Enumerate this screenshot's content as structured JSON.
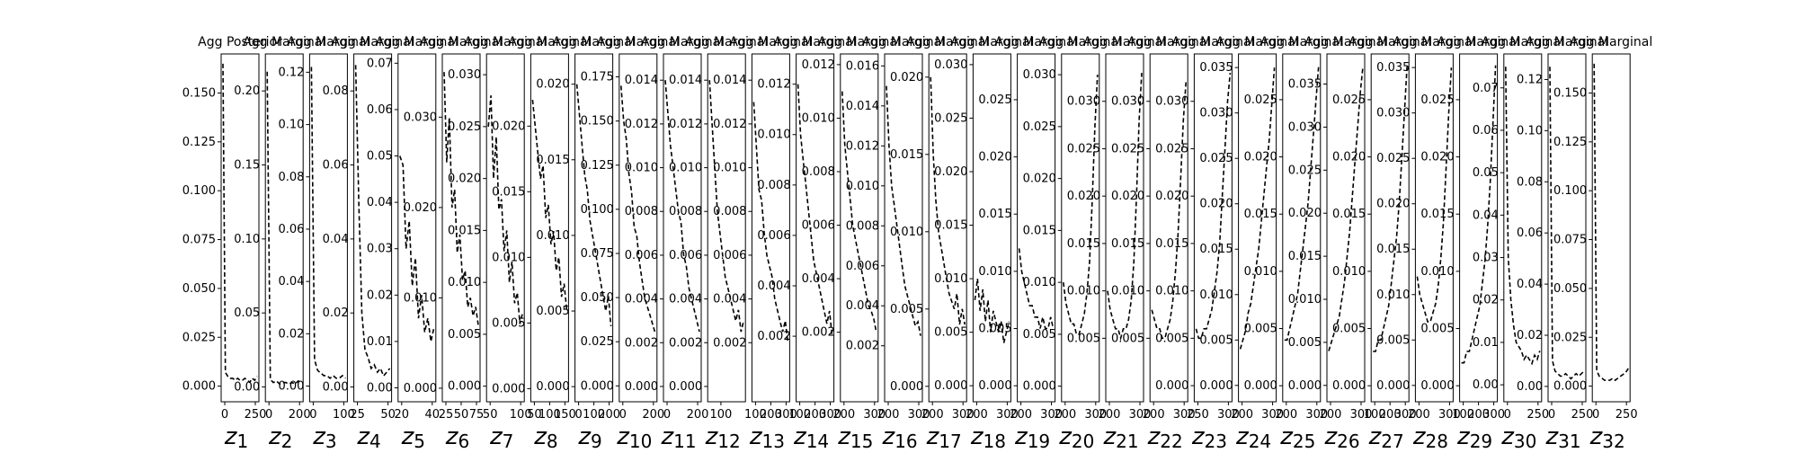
{
  "chart_data": [
    {
      "type": "line",
      "title": "Agg Posterior",
      "xlabel": "z_1",
      "subscript": "1",
      "ylim": [
        -0.008,
        0.17
      ],
      "yticks": [
        "0.000",
        "0.025",
        "0.050",
        "0.075",
        "0.100",
        "0.125",
        "0.150"
      ],
      "xticks": [
        "0",
        "250"
      ],
      "values": [
        0.165,
        0.007,
        0.005,
        0.004,
        0.004,
        0.003,
        0.004,
        0.003,
        0.003,
        0.004,
        0.003,
        0.002,
        0.004,
        0.003,
        0.005
      ]
    },
    {
      "type": "line",
      "title": "Agg Marginal",
      "xlabel": "z_2",
      "subscript": "2",
      "ylim": [
        -0.01,
        0.225
      ],
      "yticks": [
        "0.00",
        "0.05",
        "0.10",
        "0.15",
        "0.20"
      ],
      "xticks": [
        "0",
        "200"
      ],
      "values": [
        0.213,
        0.005,
        0.003,
        0.004,
        0.002,
        0.003,
        0.003,
        0.002,
        0.003,
        0.002,
        0.004,
        0.003
      ]
    },
    {
      "type": "line",
      "title": "Agg Marginal",
      "xlabel": "z_3",
      "subscript": "3",
      "ylim": [
        -0.006,
        0.127
      ],
      "yticks": [
        "0.00",
        "0.02",
        "0.04",
        "0.06",
        "0.08",
        "0.10",
        "0.12"
      ],
      "xticks": [
        "0",
        "100"
      ],
      "values": [
        0.122,
        0.01,
        0.006,
        0.005,
        0.004,
        0.004,
        0.003,
        0.004,
        0.003,
        0.003,
        0.004,
        0.003
      ]
    },
    {
      "type": "line",
      "title": "Agg Marginal",
      "xlabel": "z_4",
      "subscript": "4",
      "ylim": [
        -0.004,
        0.09
      ],
      "yticks": [
        "0.00",
        "0.02",
        "0.04",
        "0.06",
        "0.08"
      ],
      "xticks": [
        "25",
        "50"
      ],
      "values": [
        0.087,
        0.05,
        0.02,
        0.01,
        0.008,
        0.005,
        0.006,
        0.004,
        0.005,
        0.003,
        0.004,
        0.005
      ]
    },
    {
      "type": "line",
      "title": "Agg Marginal",
      "xlabel": "z_5",
      "subscript": "5",
      "ylim": [
        -0.003,
        0.072
      ],
      "yticks": [
        "0.00",
        "0.01",
        "0.02",
        "0.03",
        "0.04",
        "0.05",
        "0.06",
        "0.07"
      ],
      "xticks": [
        "20",
        "40"
      ],
      "values": [
        0.05,
        0.048,
        0.03,
        0.036,
        0.022,
        0.028,
        0.015,
        0.02,
        0.012,
        0.015,
        0.01,
        0.013
      ]
    },
    {
      "type": "line",
      "title": "Agg Marginal",
      "xlabel": "z_6",
      "subscript": "6",
      "ylim": [
        -0.0015,
        0.037
      ],
      "yticks": [
        "0.000",
        "0.010",
        "0.020",
        "0.030"
      ],
      "xticks": [
        "25",
        "50",
        "75"
      ],
      "values": [
        0.035,
        0.025,
        0.03,
        0.02,
        0.022,
        0.015,
        0.017,
        0.012,
        0.013,
        0.009,
        0.01,
        0.008,
        0.009,
        0.007
      ]
    },
    {
      "type": "line",
      "title": "Agg Marginal",
      "xlabel": "z_7",
      "subscript": "7",
      "ylim": [
        -0.0015,
        0.032
      ],
      "yticks": [
        "0.000",
        "0.005",
        "0.010",
        "0.015",
        "0.020",
        "0.025",
        "0.030"
      ],
      "xticks": [
        "50",
        "100"
      ],
      "values": [
        0.025,
        0.028,
        0.02,
        0.024,
        0.017,
        0.018,
        0.013,
        0.015,
        0.01,
        0.012,
        0.008,
        0.009,
        0.006,
        0.007
      ]
    },
    {
      "type": "line",
      "title": "Agg Marginal",
      "xlabel": "z_8",
      "subscript": "8",
      "ylim": [
        -0.001,
        0.0255
      ],
      "yticks": [
        "0.000",
        "0.005",
        "0.010",
        "0.015",
        "0.020"
      ],
      "xticks": [
        "50",
        "100",
        "150"
      ],
      "values": [
        0.022,
        0.02,
        0.018,
        0.016,
        0.017,
        0.013,
        0.014,
        0.011,
        0.012,
        0.009,
        0.01,
        0.007,
        0.008,
        0.006
      ]
    },
    {
      "type": "line",
      "title": "Agg Marginal",
      "xlabel": "z_9",
      "subscript": "9",
      "ylim": [
        -0.001,
        0.022
      ],
      "yticks": [
        "0.000",
        "0.005",
        "0.010",
        "0.015",
        "0.020"
      ],
      "xticks": [
        "0",
        "100",
        "200"
      ],
      "values": [
        0.02,
        0.018,
        0.016,
        0.014,
        0.013,
        0.011,
        0.01,
        0.009,
        0.008,
        0.007,
        0.006,
        0.005,
        0.006,
        0.004
      ]
    },
    {
      "type": "line",
      "title": "Agg Marginal",
      "xlabel": "z_10",
      "subscript": "10",
      "ylim": [
        -0.009,
        0.188
      ],
      "yticks": [
        "0.000",
        "0.025",
        "0.050",
        "0.075",
        "0.100",
        "0.125",
        "0.150",
        "0.175"
      ],
      "xticks": [
        "0",
        "200"
      ],
      "values": [
        0.17,
        0.15,
        0.14,
        0.12,
        0.11,
        0.09,
        0.085,
        0.07,
        0.06,
        0.05,
        0.045,
        0.04,
        0.035,
        0.03
      ]
    },
    {
      "type": "line",
      "title": "Agg Marginal",
      "xlabel": "z_11",
      "subscript": "11",
      "ylim": [
        -0.0007,
        0.0152
      ],
      "yticks": [
        "0.000",
        "0.002",
        "0.004",
        "0.006",
        "0.008",
        "0.010",
        "0.012",
        "0.014"
      ],
      "xticks": [
        "0",
        "200"
      ],
      "values": [
        0.014,
        0.0125,
        0.011,
        0.01,
        0.009,
        0.008,
        0.0075,
        0.006,
        0.0055,
        0.0045,
        0.004,
        0.0035,
        0.003,
        0.0025
      ]
    },
    {
      "type": "line",
      "title": "Agg Marginal",
      "xlabel": "z_12",
      "subscript": "12",
      "ylim": [
        -0.0007,
        0.0152
      ],
      "yticks": [
        "0.000",
        "0.002",
        "0.004",
        "0.006",
        "0.008",
        "0.010",
        "0.012",
        "0.014"
      ],
      "xticks": [
        "100"
      ],
      "values": [
        0.014,
        0.012,
        0.01,
        0.008,
        0.007,
        0.006,
        0.005,
        0.0045,
        0.004,
        0.0035,
        0.003,
        0.0035,
        0.0025,
        0.003
      ]
    },
    {
      "type": "line",
      "title": "Agg Marginal",
      "xlabel": "z_13",
      "subscript": "13",
      "ylim": [
        -0.0007,
        0.0152
      ],
      "yticks": [
        "0.002",
        "0.004",
        "0.006",
        "0.008",
        "0.010",
        "0.012",
        "0.014"
      ],
      "xticks": [
        "100",
        "200",
        "300"
      ],
      "values": [
        0.013,
        0.011,
        0.009,
        0.0085,
        0.007,
        0.006,
        0.0055,
        0.005,
        0.004,
        0.0035,
        0.003,
        0.0025,
        0.003,
        0.002
      ]
    },
    {
      "type": "line",
      "title": "Agg Marginal",
      "xlabel": "z_14",
      "subscript": "14",
      "ylim": [
        -0.0006,
        0.0132
      ],
      "yticks": [
        "0.002",
        "0.004",
        "0.006",
        "0.008",
        "0.010",
        "0.012"
      ],
      "xticks": [
        "100",
        "200",
        "300"
      ],
      "values": [
        0.012,
        0.01,
        0.009,
        0.008,
        0.007,
        0.006,
        0.005,
        0.0045,
        0.004,
        0.0035,
        0.003,
        0.0025,
        0.003,
        0.002
      ]
    },
    {
      "type": "line",
      "title": "Agg Marginal",
      "xlabel": "z_15",
      "subscript": "15",
      "ylim": [
        -0.0006,
        0.0124
      ],
      "yticks": [
        "0.002",
        "0.004",
        "0.006",
        "0.008",
        "0.010",
        "0.012"
      ],
      "xticks": [
        "200",
        "300"
      ],
      "values": [
        0.011,
        0.009,
        0.008,
        0.007,
        0.006,
        0.0055,
        0.005,
        0.0045,
        0.004,
        0.0035,
        0.003,
        0.0028,
        0.0025,
        0.002
      ]
    },
    {
      "type": "line",
      "title": "Agg Marginal",
      "xlabel": "z_16",
      "subscript": "16",
      "ylim": [
        -0.0008,
        0.0166
      ],
      "yticks": [
        "0.002",
        "0.004",
        "0.006",
        "0.008",
        "0.010",
        "0.012",
        "0.014",
        "0.016"
      ],
      "xticks": [
        "200",
        "300"
      ],
      "values": [
        0.015,
        0.012,
        0.01,
        0.009,
        0.008,
        0.007,
        0.006,
        0.005,
        0.0045,
        0.004,
        0.0035,
        0.003,
        0.0032,
        0.0025
      ]
    },
    {
      "type": "line",
      "title": "Agg Marginal",
      "xlabel": "z_17",
      "subscript": "17",
      "ylim": [
        -0.001,
        0.0215
      ],
      "yticks": [
        "0.000",
        "0.005",
        "0.010",
        "0.015",
        "0.020"
      ],
      "xticks": [
        "200",
        "300"
      ],
      "values": [
        0.02,
        0.015,
        0.012,
        0.01,
        0.009,
        0.008,
        0.007,
        0.006,
        0.0055,
        0.005,
        0.006,
        0.004,
        0.005,
        0.004
      ]
    },
    {
      "type": "line",
      "title": "Agg Marginal",
      "xlabel": "z_18",
      "subscript": "18",
      "ylim": [
        -0.0015,
        0.031
      ],
      "yticks": [
        "0.000",
        "0.005",
        "0.010",
        "0.015",
        "0.020",
        "0.025",
        "0.030"
      ],
      "xticks": [
        "200",
        "300"
      ],
      "values": [
        0.008,
        0.01,
        0.007,
        0.009,
        0.006,
        0.008,
        0.005,
        0.007,
        0.006,
        0.005,
        0.006,
        0.004,
        0.005,
        0.006
      ]
    },
    {
      "type": "line",
      "title": "Agg Marginal",
      "xlabel": "z_19",
      "subscript": "19",
      "ylim": [
        -0.0014,
        0.029
      ],
      "yticks": [
        "0.000",
        "0.005",
        "0.010",
        "0.015",
        "0.020",
        "0.025"
      ],
      "xticks": [
        "200",
        "300"
      ],
      "values": [
        0.012,
        0.01,
        0.009,
        0.008,
        0.007,
        0.007,
        0.006,
        0.006,
        0.005,
        0.006,
        0.005,
        0.005,
        0.006,
        0.005
      ]
    },
    {
      "type": "line",
      "title": "Agg Marginal",
      "xlabel": "z_20",
      "subscript": "20",
      "ylim": [
        -0.0015,
        0.032
      ],
      "yticks": [
        "0.000",
        "0.005",
        "0.010",
        "0.015",
        "0.020",
        "0.025",
        "0.030"
      ],
      "xticks": [
        "200",
        "300"
      ],
      "values": [
        0.01,
        0.008,
        0.007,
        0.006,
        0.006,
        0.005,
        0.005,
        0.006,
        0.007,
        0.009,
        0.012,
        0.018,
        0.025,
        0.03
      ]
    },
    {
      "type": "line",
      "title": "Agg Marginal",
      "xlabel": "z_21",
      "subscript": "21",
      "ylim": [
        -0.0017,
        0.035
      ],
      "yticks": [
        "0.005",
        "0.010",
        "0.015",
        "0.020",
        "0.025",
        "0.030"
      ],
      "xticks": [
        "200",
        "300"
      ],
      "values": [
        0.01,
        0.008,
        0.007,
        0.006,
        0.006,
        0.005,
        0.006,
        0.006,
        0.007,
        0.009,
        0.013,
        0.02,
        0.028,
        0.033
      ]
    },
    {
      "type": "line",
      "title": "Agg Marginal",
      "xlabel": "z_22",
      "subscript": "22",
      "ylim": [
        -0.0017,
        0.035
      ],
      "yticks": [
        "0.005",
        "0.010",
        "0.015",
        "0.020",
        "0.025",
        "0.030"
      ],
      "xticks": [
        "200",
        "300"
      ],
      "values": [
        0.008,
        0.007,
        0.006,
        0.006,
        0.005,
        0.005,
        0.006,
        0.007,
        0.009,
        0.012,
        0.016,
        0.022,
        0.028,
        0.032
      ]
    },
    {
      "type": "line",
      "title": "Agg Marginal",
      "xlabel": "z_23",
      "subscript": "23",
      "ylim": [
        -0.0017,
        0.035
      ],
      "yticks": [
        "0.000",
        "0.005",
        "0.010",
        "0.015",
        "0.020",
        "0.025",
        "0.030"
      ],
      "xticks": [
        "250",
        "300"
      ],
      "values": [
        0.006,
        0.005,
        0.005,
        0.006,
        0.006,
        0.007,
        0.008,
        0.01,
        0.012,
        0.015,
        0.02,
        0.025,
        0.03,
        0.033
      ]
    },
    {
      "type": "line",
      "title": "Agg Marginal",
      "xlabel": "z_24",
      "subscript": "24",
      "ylim": [
        -0.0018,
        0.0365
      ],
      "yticks": [
        "0.000",
        "0.005",
        "0.010",
        "0.015",
        "0.020",
        "0.025",
        "0.030",
        "0.035"
      ],
      "xticks": [
        "200",
        "300"
      ],
      "values": [
        0.004,
        0.005,
        0.006,
        0.008,
        0.009,
        0.011,
        0.013,
        0.015,
        0.018,
        0.021,
        0.024,
        0.027,
        0.031,
        0.035
      ]
    },
    {
      "type": "line",
      "title": "Agg Marginal",
      "xlabel": "z_25",
      "subscript": "25",
      "ylim": [
        -0.0014,
        0.029
      ],
      "yticks": [
        "0.000",
        "0.005",
        "0.010",
        "0.015",
        "0.020",
        "0.025"
      ],
      "xticks": [
        "200",
        "300"
      ],
      "values": [
        0.004,
        0.004,
        0.005,
        0.006,
        0.007,
        0.008,
        0.01,
        0.012,
        0.014,
        0.016,
        0.019,
        0.022,
        0.025,
        0.028
      ]
    },
    {
      "type": "line",
      "title": "Agg Marginal",
      "xlabel": "z_26",
      "subscript": "26",
      "ylim": [
        -0.0019,
        0.0385
      ],
      "yticks": [
        "0.000",
        "0.005",
        "0.010",
        "0.015",
        "0.020",
        "0.025",
        "0.030",
        "0.035"
      ],
      "xticks": [
        "200",
        "300"
      ],
      "values": [
        0.004,
        0.005,
        0.006,
        0.007,
        0.008,
        0.01,
        0.012,
        0.015,
        0.018,
        0.022,
        0.026,
        0.03,
        0.034,
        0.037
      ]
    },
    {
      "type": "line",
      "title": "Agg Marginal",
      "xlabel": "z_27",
      "subscript": "27",
      "ylim": [
        -0.0014,
        0.029
      ],
      "yticks": [
        "0.000",
        "0.005",
        "0.010",
        "0.015",
        "0.020",
        "0.025"
      ],
      "xticks": [
        "100",
        "200",
        "300"
      ],
      "values": [
        0.003,
        0.003,
        0.004,
        0.004,
        0.005,
        0.006,
        0.007,
        0.009,
        0.011,
        0.013,
        0.016,
        0.02,
        0.024,
        0.028
      ]
    },
    {
      "type": "line",
      "title": "Agg Marginal",
      "xlabel": "z_28",
      "subscript": "28",
      "ylim": [
        -0.0018,
        0.0365
      ],
      "yticks": [
        "0.000",
        "0.005",
        "0.010",
        "0.015",
        "0.020",
        "0.025",
        "0.030",
        "0.035"
      ],
      "xticks": [
        "200",
        "300"
      ],
      "values": [
        0.012,
        0.01,
        0.009,
        0.008,
        0.007,
        0.007,
        0.008,
        0.009,
        0.011,
        0.014,
        0.018,
        0.024,
        0.03,
        0.035
      ]
    },
    {
      "type": "line",
      "title": "Agg Marginal",
      "xlabel": "z_29",
      "subscript": "29",
      "ylim": [
        -0.0014,
        0.029
      ],
      "yticks": [
        "0.000",
        "0.005",
        "0.010",
        "0.015",
        "0.020",
        "0.025"
      ],
      "xticks": [
        "100",
        "200",
        "300"
      ],
      "values": [
        0.002,
        0.002,
        0.003,
        0.003,
        0.004,
        0.005,
        0.006,
        0.007,
        0.009,
        0.011,
        0.014,
        0.018,
        0.023,
        0.028
      ]
    },
    {
      "type": "line",
      "title": "Agg Marginal",
      "xlabel": "z_30",
      "subscript": "30",
      "ylim": [
        -0.004,
        0.078
      ],
      "yticks": [
        "0.00",
        "0.01",
        "0.02",
        "0.03",
        "0.04",
        "0.05",
        "0.06",
        "0.07"
      ],
      "xticks": [
        "0",
        "250"
      ],
      "values": [
        0.075,
        0.03,
        0.02,
        0.014,
        0.01,
        0.009,
        0.008,
        0.006,
        0.007,
        0.006,
        0.005,
        0.007,
        0.006,
        0.008
      ]
    },
    {
      "type": "line",
      "title": "Agg Marginal",
      "xlabel": "z_31",
      "subscript": "31",
      "ylim": [
        -0.006,
        0.13
      ],
      "yticks": [
        "0.00",
        "0.02",
        "0.04",
        "0.06",
        "0.08",
        "0.10",
        "0.12"
      ],
      "xticks": [
        "0",
        "250"
      ],
      "values": [
        0.125,
        0.01,
        0.006,
        0.005,
        0.004,
        0.004,
        0.005,
        0.004,
        0.003,
        0.004,
        0.005,
        0.004,
        0.005,
        0.006
      ]
    },
    {
      "type": "line",
      "title": "Agg Marginal",
      "xlabel": "z_32",
      "subscript": "32",
      "ylim": [
        -0.008,
        0.17
      ],
      "yticks": [
        "0.000",
        "0.025",
        "0.050",
        "0.075",
        "0.100",
        "0.125",
        "0.150"
      ],
      "xticks": [
        "0",
        "250"
      ],
      "values": [
        0.165,
        0.008,
        0.005,
        0.004,
        0.003,
        0.003,
        0.003,
        0.004,
        0.003,
        0.004,
        0.005,
        0.006,
        0.007,
        0.009
      ]
    }
  ]
}
